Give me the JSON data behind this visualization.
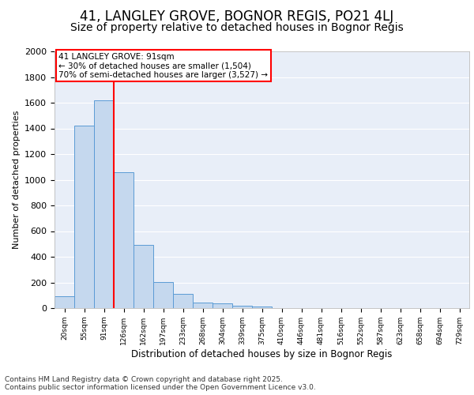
{
  "title": "41, LANGLEY GROVE, BOGNOR REGIS, PO21 4LJ",
  "subtitle": "Size of property relative to detached houses in Bognor Regis",
  "xlabel": "Distribution of detached houses by size in Bognor Regis",
  "ylabel": "Number of detached properties",
  "categories": [
    "20sqm",
    "55sqm",
    "91sqm",
    "126sqm",
    "162sqm",
    "197sqm",
    "233sqm",
    "268sqm",
    "304sqm",
    "339sqm",
    "375sqm",
    "410sqm",
    "446sqm",
    "481sqm",
    "516sqm",
    "552sqm",
    "587sqm",
    "623sqm",
    "658sqm",
    "694sqm",
    "729sqm"
  ],
  "values": [
    90,
    1420,
    1620,
    1060,
    490,
    205,
    110,
    45,
    40,
    20,
    10,
    0,
    0,
    0,
    0,
    0,
    0,
    0,
    0,
    0,
    0
  ],
  "bar_color": "#c5d8ee",
  "bar_edge_color": "#5b9bd5",
  "bar_alpha": 1.0,
  "red_line_index": 2,
  "annotation_line1": "41 LANGLEY GROVE: 91sqm",
  "annotation_line2": "← 30% of detached houses are smaller (1,504)",
  "annotation_line3": "70% of semi-detached houses are larger (3,527) →",
  "ylim": [
    0,
    2000
  ],
  "yticks": [
    0,
    200,
    400,
    600,
    800,
    1000,
    1200,
    1400,
    1600,
    1800,
    2000
  ],
  "background_color": "#e8eef8",
  "grid_color": "#ffffff",
  "footer_text": "Contains HM Land Registry data © Crown copyright and database right 2025.\nContains public sector information licensed under the Open Government Licence v3.0.",
  "title_fontsize": 12,
  "subtitle_fontsize": 10,
  "footer_fontsize": 6.5,
  "annotation_box_color": "#ffffff",
  "annotation_box_edge": "#cc0000"
}
